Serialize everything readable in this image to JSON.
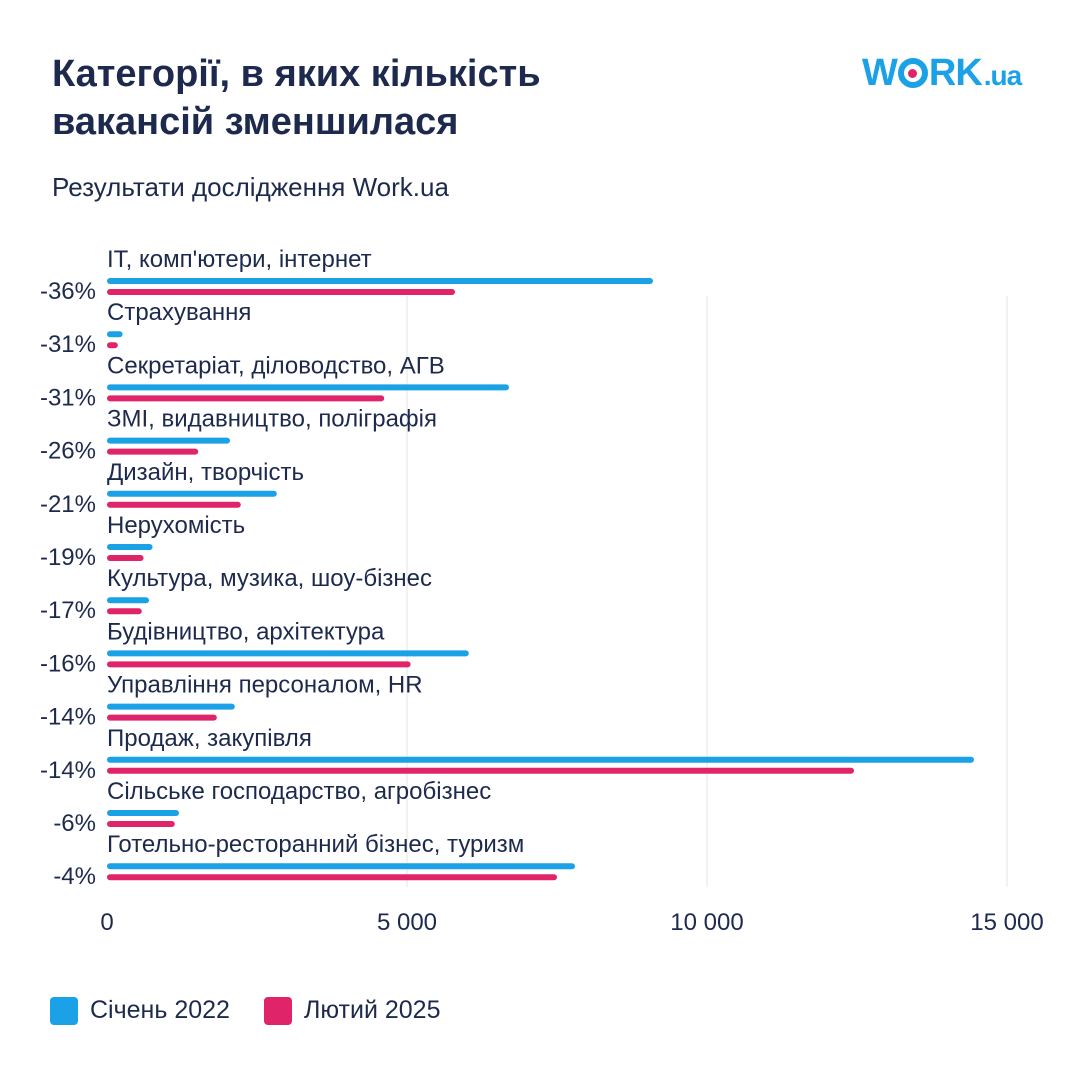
{
  "header": {
    "title": "Категорії, в яких кількість вакансій зменшилася",
    "subtitle": "Результати дослідження Work.ua"
  },
  "logo": {
    "main": "WORK",
    "suffix": ".ua",
    "accent_color": "#e0246a",
    "brand_color": "#1ba1e6"
  },
  "colors": {
    "series_2022": "#1ba1e6",
    "series_2025": "#e0246a",
    "grid": "#e6e6e6",
    "text": "#1d2a4d"
  },
  "chart_data": {
    "type": "bar",
    "orientation": "horizontal",
    "categories": [
      "IT, комп'ютери, інтернет",
      "Страхування",
      "Секретаріат, діловодство, АГВ",
      "ЗМІ, видавництво, поліграфія",
      "Дизайн, творчість",
      "Нерухомість",
      "Культура, музика, шоу-бізнес",
      "Будівництво, архітектура",
      "Управління персоналом, HR",
      "Продаж, закупівля",
      "Сільське господарство, агробізнес",
      "Готельно-ресторанний бізнес, туризм"
    ],
    "change_labels": [
      "-36%",
      "-31%",
      "-31%",
      "-26%",
      "-21%",
      "-19%",
      "-17%",
      "-16%",
      "-14%",
      "-14%",
      "-6%",
      "-4%"
    ],
    "series": [
      {
        "name": "Січень 2022",
        "color": "#1ba1e6",
        "values": [
          9100,
          260,
          6700,
          2050,
          2830,
          760,
          700,
          6030,
          2130,
          14450,
          1200,
          7800
        ]
      },
      {
        "name": "Лютий 2025",
        "color": "#e0246a",
        "values": [
          5800,
          180,
          4620,
          1520,
          2230,
          610,
          580,
          5060,
          1830,
          12450,
          1130,
          7500
        ]
      }
    ],
    "xlim": [
      0,
      15000
    ],
    "xticks": [
      0,
      5000,
      10000,
      15000
    ],
    "xtick_labels": [
      "0",
      "5 000",
      "10 000",
      "15 000"
    ],
    "grid": "vertical",
    "legend_position": "bottom-left"
  }
}
